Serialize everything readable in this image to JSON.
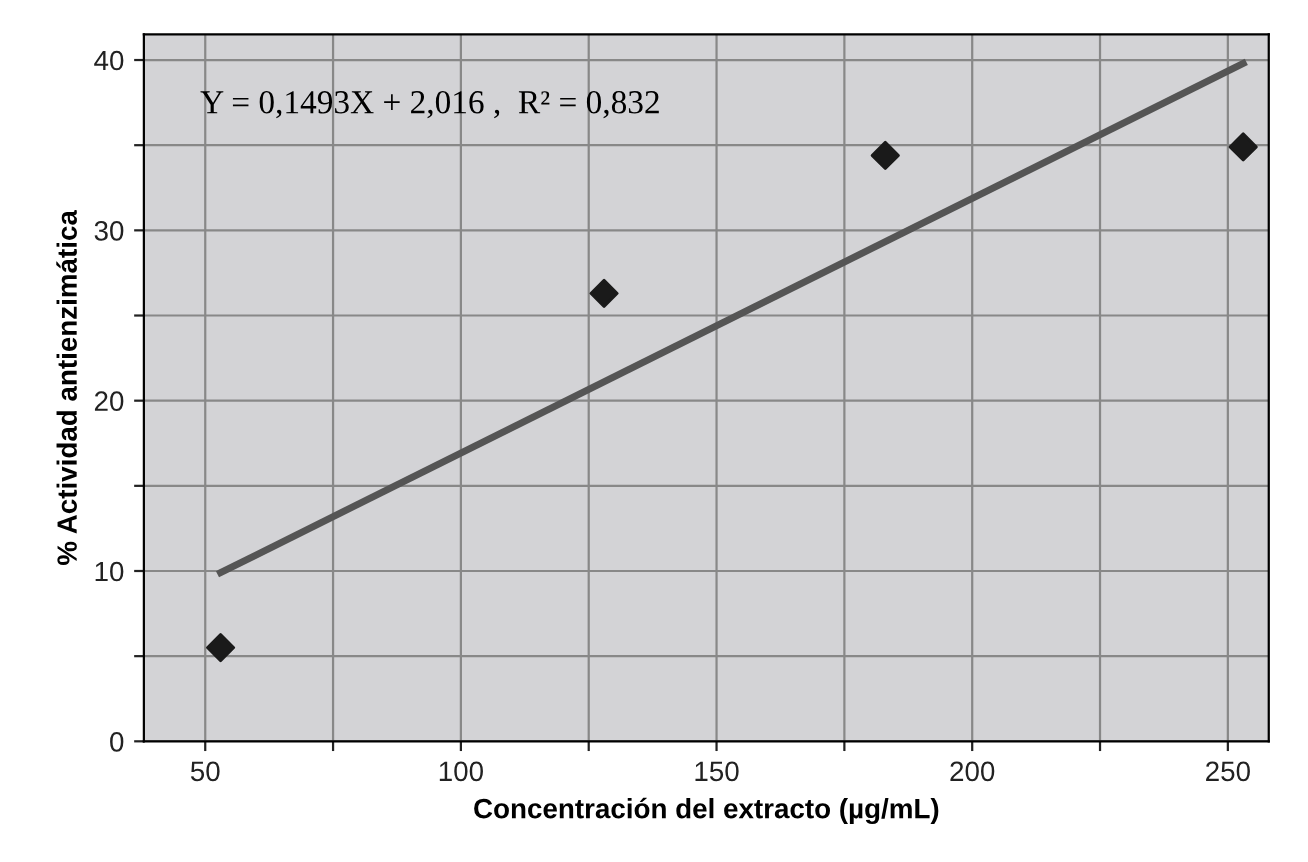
{
  "chart_data": {
    "type": "scatter",
    "xlabel": "Concentración del extracto (µg/mL)",
    "ylabel": "% Actividad antienzimática",
    "annotations": [
      "Y = 0,1493X + 2,016 ,  R² = 0,832"
    ],
    "series": [
      {
        "color": "#1a1a1a",
        "marker": "diamond",
        "x": [
          53,
          128,
          183,
          253
        ],
        "values": [
          5.5,
          26.3,
          34.4,
          34.9
        ]
      },
      {
        "type": "line",
        "color": "#555555",
        "line_style": "solid",
        "marker": "none",
        "x": [
          53,
          253
        ],
        "values": [
          9.9,
          39.8
        ]
      }
    ],
    "xlim": [
      38,
      258
    ],
    "ylim": [
      0,
      41.5
    ],
    "xticks": [
      50,
      {
        "value": 75,
        "label": null
      },
      100,
      {
        "value": 125,
        "label": null
      },
      150,
      {
        "value": 175,
        "label": null
      },
      200,
      {
        "value": 225,
        "label": null
      },
      250
    ],
    "yticks": [
      0,
      {
        "value": 5,
        "label": null
      },
      10,
      {
        "value": 15,
        "label": null
      },
      20,
      {
        "value": 25,
        "label": null
      },
      30,
      {
        "value": 35,
        "label": null
      },
      40
    ],
    "grid": true,
    "legend": false
  }
}
